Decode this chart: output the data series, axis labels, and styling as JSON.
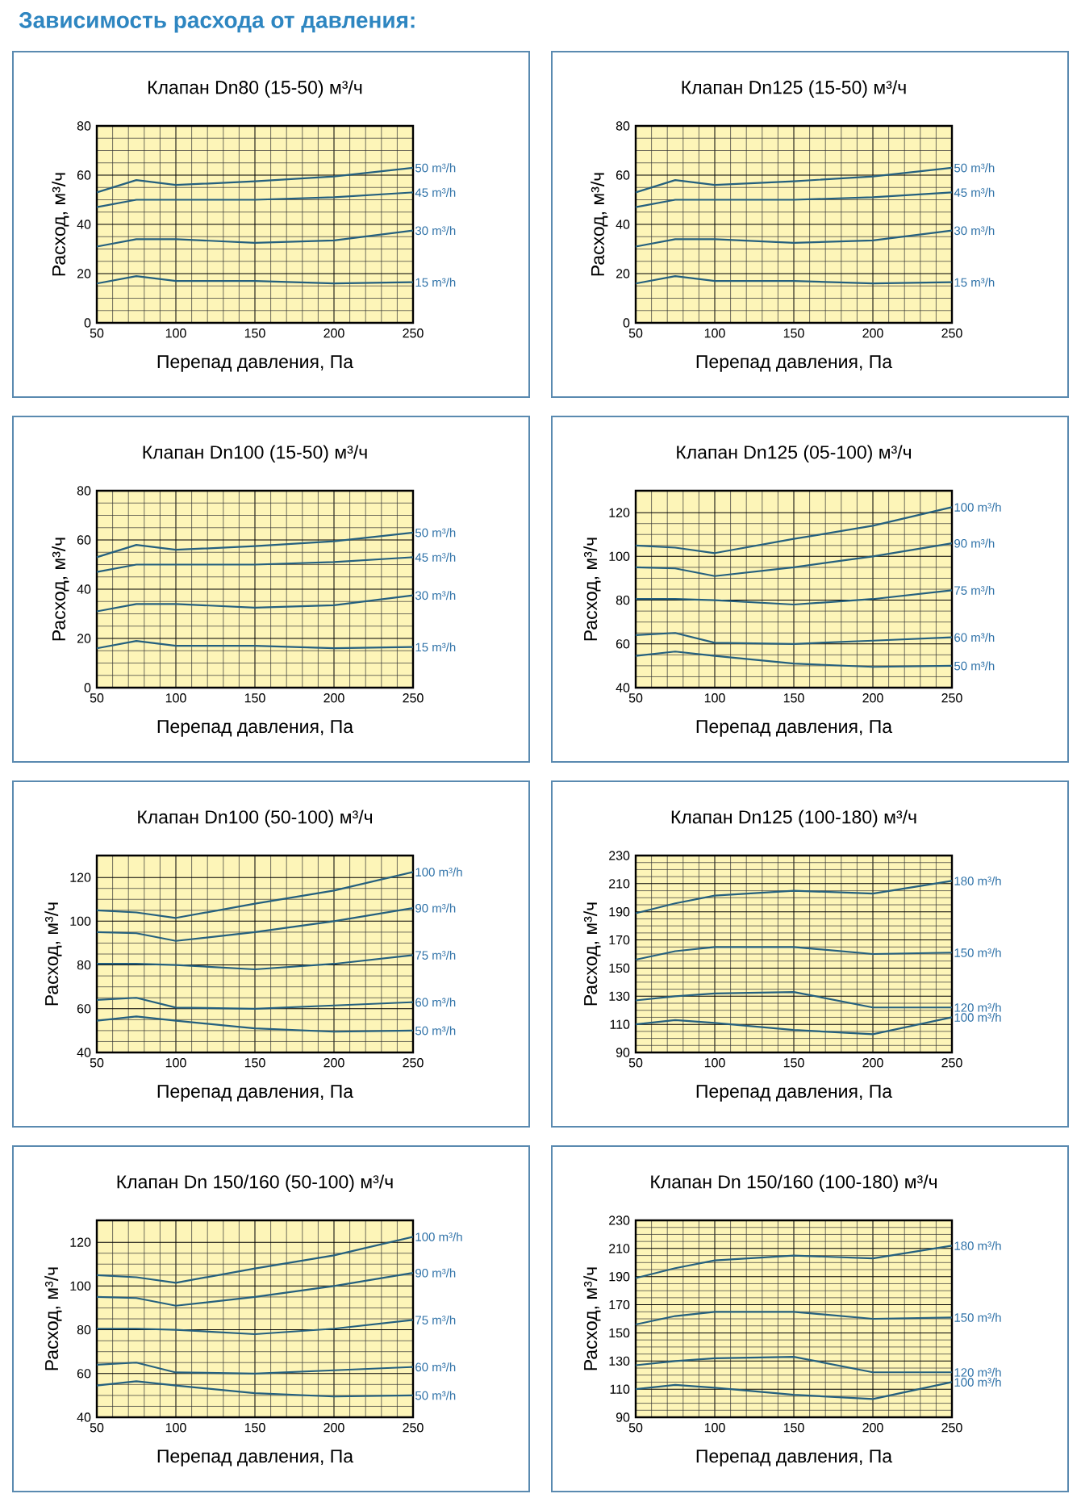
{
  "chart_data": [
    {
      "type": "other",
      "title": "Зависимость расхода от давления:"
    },
    {
      "type": "line",
      "title": "Клапан Dn80 (15-50) м³/ч",
      "xlabel": "Перепад давления, Па",
      "ylabel": "Расход, м³/ч",
      "x": [
        50,
        75,
        100,
        150,
        200,
        250
      ],
      "xlim": [
        50,
        250
      ],
      "xticks": [
        50,
        100,
        150,
        200,
        250
      ],
      "ylim": [
        0,
        80
      ],
      "yticks": [
        0,
        20,
        40,
        60,
        80
      ],
      "grid": true,
      "series": [
        {
          "name": "50 m³/h",
          "color": "#25607e",
          "values": [
            53,
            58,
            56,
            57.5,
            59.5,
            63
          ]
        },
        {
          "name": "45 m³/h",
          "color": "#25607e",
          "values": [
            47,
            50,
            50,
            50,
            51,
            53
          ]
        },
        {
          "name": "30 m³/h",
          "color": "#25607e",
          "values": [
            31,
            34,
            34,
            32.5,
            33.5,
            37.5
          ]
        },
        {
          "name": "15 m³/h",
          "color": "#25607e",
          "values": [
            16,
            19,
            17,
            17,
            16,
            16.5
          ]
        }
      ]
    },
    {
      "type": "line",
      "title": "Клапан Dn125 (15-50) м³/ч",
      "xlabel": "Перепад давления, Па",
      "ylabel": "Расход, м³/ч",
      "x": [
        50,
        75,
        100,
        150,
        200,
        250
      ],
      "xlim": [
        50,
        250
      ],
      "xticks": [
        50,
        100,
        150,
        200,
        250
      ],
      "ylim": [
        0,
        80
      ],
      "yticks": [
        0,
        20,
        40,
        60,
        80
      ],
      "grid": true,
      "series": [
        {
          "name": "50 m³/h",
          "color": "#25607e",
          "values": [
            53,
            58,
            56,
            57.5,
            59.5,
            63
          ]
        },
        {
          "name": "45 m³/h",
          "color": "#25607e",
          "values": [
            47,
            50,
            50,
            50,
            51,
            53
          ]
        },
        {
          "name": "30 m³/h",
          "color": "#25607e",
          "values": [
            31,
            34,
            34,
            32.5,
            33.5,
            37.5
          ]
        },
        {
          "name": "15 m³/h",
          "color": "#25607e",
          "values": [
            16,
            19,
            17,
            17,
            16,
            16.5
          ]
        }
      ]
    },
    {
      "type": "line",
      "title": "Клапан Dn100 (15-50) м³/ч",
      "xlabel": "Перепад давления, Па",
      "ylabel": "Расход, м³/ч",
      "x": [
        50,
        75,
        100,
        150,
        200,
        250
      ],
      "xlim": [
        50,
        250
      ],
      "xticks": [
        50,
        100,
        150,
        200,
        250
      ],
      "ylim": [
        0,
        80
      ],
      "yticks": [
        0,
        20,
        40,
        60,
        80
      ],
      "grid": true,
      "series": [
        {
          "name": "50 m³/h",
          "color": "#25607e",
          "values": [
            53,
            58,
            56,
            57.5,
            59.5,
            63
          ]
        },
        {
          "name": "45 m³/h",
          "color": "#25607e",
          "values": [
            47,
            50,
            50,
            50,
            51,
            53
          ]
        },
        {
          "name": "30 m³/h",
          "color": "#25607e",
          "values": [
            31,
            34,
            34,
            32.5,
            33.5,
            37.5
          ]
        },
        {
          "name": "15 m³/h",
          "color": "#25607e",
          "values": [
            16,
            19,
            17,
            17,
            16,
            16.5
          ]
        }
      ]
    },
    {
      "type": "line",
      "title": "Клапан Dn125 (05-100) м³/ч",
      "xlabel": "Перепад давления, Па",
      "ylabel": "Расход, м³/ч",
      "x": [
        50,
        75,
        100,
        150,
        200,
        250
      ],
      "xlim": [
        50,
        250
      ],
      "xticks": [
        50,
        100,
        150,
        200,
        250
      ],
      "ylim": [
        40,
        130
      ],
      "yticks": [
        40,
        60,
        80,
        100,
        120
      ],
      "grid": true,
      "series": [
        {
          "name": "100 m³/h",
          "color": "#25607e",
          "values": [
            105,
            104,
            101.5,
            108,
            114,
            122.5
          ]
        },
        {
          "name": "90 m³/h",
          "color": "#25607e",
          "values": [
            95,
            94.5,
            91,
            95,
            100,
            106
          ]
        },
        {
          "name": "75 m³/h",
          "color": "#25607e",
          "values": [
            80.5,
            80.5,
            80,
            78,
            80.5,
            84.5
          ]
        },
        {
          "name": "60 m³/h",
          "color": "#25607e",
          "values": [
            64,
            65,
            60.5,
            60,
            61.5,
            63
          ]
        },
        {
          "name": "50 m³/h",
          "color": "#25607e",
          "values": [
            54.5,
            56.5,
            54.5,
            51,
            49.5,
            50
          ]
        }
      ]
    },
    {
      "type": "line",
      "title": "Клапан Dn100 (50-100) м³/ч",
      "xlabel": "Перепад давления, Па",
      "ylabel": "Расход, м³/ч",
      "x": [
        50,
        75,
        100,
        150,
        200,
        250
      ],
      "xlim": [
        50,
        250
      ],
      "xticks": [
        50,
        100,
        150,
        200,
        250
      ],
      "ylim": [
        40,
        130
      ],
      "yticks": [
        40,
        60,
        80,
        100,
        120
      ],
      "grid": true,
      "series": [
        {
          "name": "100 m³/h",
          "color": "#25607e",
          "values": [
            105,
            104,
            101.5,
            108,
            114,
            122.5
          ]
        },
        {
          "name": "90 m³/h",
          "color": "#25607e",
          "values": [
            95,
            94.5,
            91,
            95,
            100,
            106
          ]
        },
        {
          "name": "75 m³/h",
          "color": "#25607e",
          "values": [
            80.5,
            80.5,
            80,
            78,
            80.5,
            84.5
          ]
        },
        {
          "name": "60 m³/h",
          "color": "#25607e",
          "values": [
            64,
            65,
            60.5,
            60,
            61.5,
            63
          ]
        },
        {
          "name": "50 m³/h",
          "color": "#25607e",
          "values": [
            54.5,
            56.5,
            54.5,
            51,
            49.5,
            50
          ]
        }
      ]
    },
    {
      "type": "line",
      "title": "Клапан Dn125 (100-180) м³/ч",
      "xlabel": "Перепад давления, Па",
      "ylabel": "Расход, м³/ч",
      "x": [
        50,
        75,
        100,
        150,
        200,
        250
      ],
      "xlim": [
        50,
        250
      ],
      "xticks": [
        50,
        100,
        150,
        200,
        250
      ],
      "ylim": [
        90,
        230
      ],
      "yticks": [
        90,
        110,
        130,
        150,
        170,
        190,
        210,
        230
      ],
      "grid": true,
      "series": [
        {
          "name": "180 m³/h",
          "color": "#25607e",
          "values": [
            189,
            196,
            201.5,
            205,
            203,
            212
          ]
        },
        {
          "name": "150 m³/h",
          "color": "#25607e",
          "values": [
            156,
            162,
            165,
            165,
            160,
            161
          ]
        },
        {
          "name": "120 m³/h",
          "color": "#25607e",
          "values": [
            127,
            130,
            132,
            133,
            122,
            122
          ]
        },
        {
          "name": "100 m³/h",
          "color": "#25607e",
          "values": [
            110,
            113,
            111,
            106,
            103,
            115
          ]
        }
      ]
    },
    {
      "type": "line",
      "title": "Клапан Dn 150/160 (50-100) м³/ч",
      "xlabel": "Перепад давления, Па",
      "ylabel": "Расход, м³/ч",
      "x": [
        50,
        75,
        100,
        150,
        200,
        250
      ],
      "xlim": [
        50,
        250
      ],
      "xticks": [
        50,
        100,
        150,
        200,
        250
      ],
      "ylim": [
        40,
        130
      ],
      "yticks": [
        40,
        60,
        80,
        100,
        120
      ],
      "grid": true,
      "series": [
        {
          "name": "100 m³/h",
          "color": "#25607e",
          "values": [
            105,
            104,
            101.5,
            108,
            114,
            122.5
          ]
        },
        {
          "name": "90 m³/h",
          "color": "#25607e",
          "values": [
            95,
            94.5,
            91,
            95,
            100,
            106
          ]
        },
        {
          "name": "75 m³/h",
          "color": "#25607e",
          "values": [
            80.5,
            80.5,
            80,
            78,
            80.5,
            84.5
          ]
        },
        {
          "name": "60 m³/h",
          "color": "#25607e",
          "values": [
            64,
            65,
            60.5,
            60,
            61.5,
            63
          ]
        },
        {
          "name": "50 m³/h",
          "color": "#25607e",
          "values": [
            54.5,
            56.5,
            54.5,
            51,
            49.5,
            50
          ]
        }
      ]
    },
    {
      "type": "line",
      "title": "Клапан Dn 150/160 (100-180) м³/ч",
      "xlabel": "Перепад давления, Па",
      "ylabel": "Расход, м³/ч",
      "x": [
        50,
        75,
        100,
        150,
        200,
        250
      ],
      "xlim": [
        50,
        250
      ],
      "xticks": [
        50,
        100,
        150,
        200,
        250
      ],
      "ylim": [
        90,
        230
      ],
      "yticks": [
        90,
        110,
        130,
        150,
        170,
        190,
        210,
        230
      ],
      "grid": true,
      "series": [
        {
          "name": "180 m³/h",
          "color": "#25607e",
          "values": [
            189,
            196,
            201.5,
            205,
            203,
            212
          ]
        },
        {
          "name": "150 m³/h",
          "color": "#25607e",
          "values": [
            156,
            162,
            165,
            165,
            160,
            161
          ]
        },
        {
          "name": "120 m³/h",
          "color": "#25607e",
          "values": [
            127,
            130,
            132,
            133,
            122,
            122
          ]
        },
        {
          "name": "100 m³/h",
          "color": "#25607e",
          "values": [
            110,
            113,
            111,
            106,
            103,
            115
          ]
        }
      ]
    }
  ]
}
